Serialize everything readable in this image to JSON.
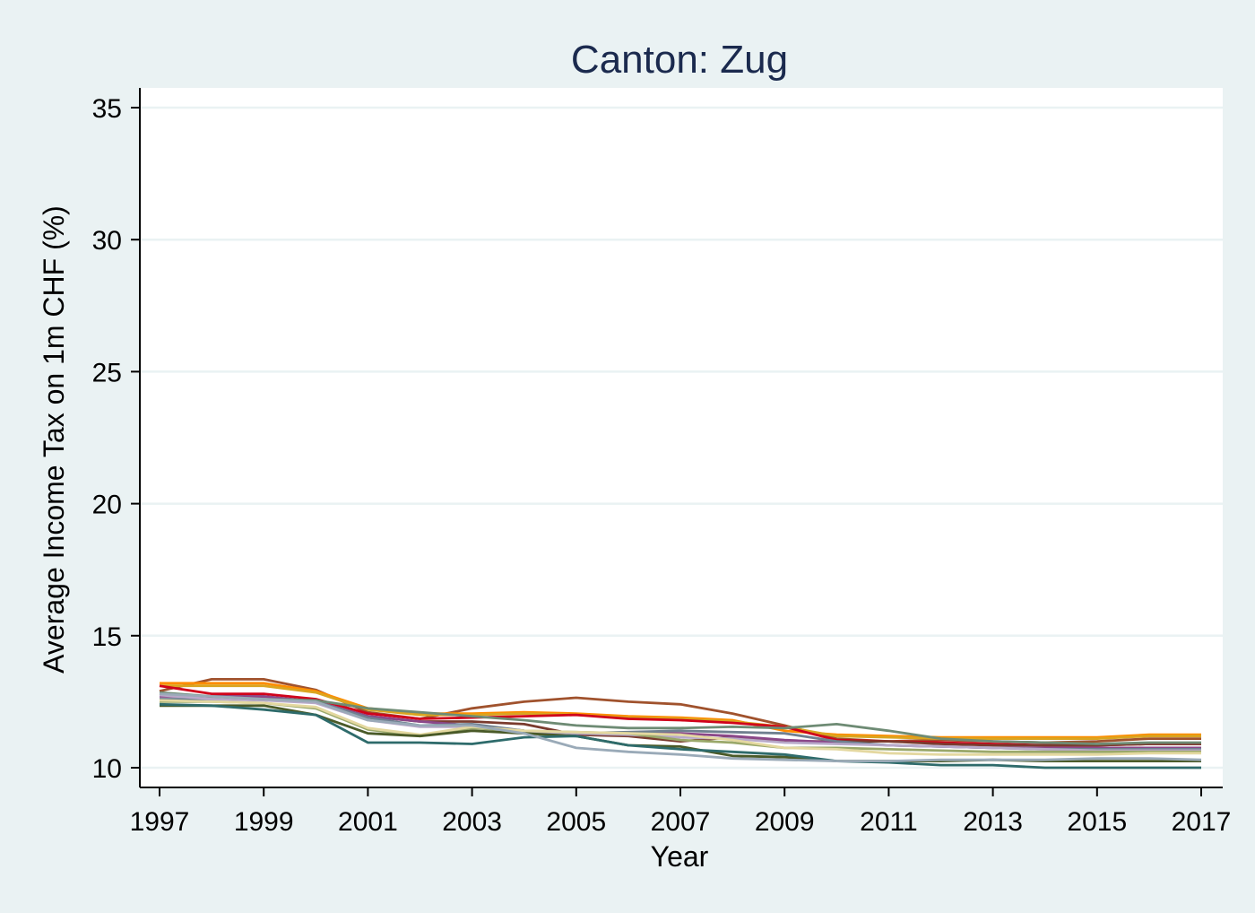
{
  "chart_data": {
    "type": "line",
    "title": "Canton: Zug",
    "xlabel": "Year",
    "ylabel": "Average Income Tax on 1m CHF (%)",
    "xlim": [
      1997,
      2017
    ],
    "ylim": [
      10,
      35
    ],
    "x_ticks": [
      1997,
      1999,
      2001,
      2003,
      2005,
      2007,
      2009,
      2011,
      2013,
      2015,
      2017
    ],
    "y_ticks": [
      10,
      15,
      20,
      25,
      30,
      35
    ],
    "grid": true,
    "legend": "none",
    "x": [
      1997,
      1998,
      1999,
      2000,
      2001,
      2002,
      2003,
      2004,
      2005,
      2006,
      2007,
      2008,
      2009,
      2010,
      2011,
      2012,
      2013,
      2014,
      2015,
      2016,
      2017
    ],
    "series": [
      {
        "color": "#a0522d",
        "values": [
          12.9,
          13.35,
          13.35,
          12.95,
          12.1,
          11.85,
          12.25,
          12.5,
          12.65,
          12.5,
          12.4,
          12.05,
          11.6,
          11.1,
          11.0,
          11.05,
          11.0,
          10.95,
          11.0,
          11.1,
          11.1
        ]
      },
      {
        "color": "#ff8c00",
        "values": [
          13.2,
          13.2,
          13.2,
          12.9,
          12.25,
          12.05,
          12.05,
          12.1,
          12.05,
          11.95,
          11.9,
          11.8,
          11.4,
          11.25,
          11.2,
          11.15,
          11.15,
          11.15,
          11.15,
          11.25,
          11.25
        ]
      },
      {
        "color": "#daa520",
        "values": [
          13.1,
          13.1,
          13.1,
          12.85,
          12.2,
          12.0,
          12.0,
          12.05,
          12.0,
          11.9,
          11.85,
          11.75,
          11.55,
          11.2,
          11.15,
          11.1,
          11.1,
          11.1,
          11.1,
          11.2,
          11.2
        ]
      },
      {
        "color": "#d0021b",
        "values": [
          13.1,
          12.8,
          12.8,
          12.6,
          12.05,
          11.85,
          11.9,
          11.95,
          12.0,
          11.85,
          11.8,
          11.7,
          11.55,
          11.05,
          11.0,
          10.95,
          10.9,
          10.85,
          10.85,
          10.9,
          10.9
        ]
      },
      {
        "color": "#7a3b2e",
        "values": [
          12.8,
          12.7,
          12.7,
          12.5,
          11.95,
          11.75,
          11.75,
          11.65,
          11.25,
          11.2,
          11.0,
          11.15,
          11.0,
          11.0,
          11.0,
          10.9,
          10.85,
          10.85,
          10.85,
          10.9,
          10.9
        ]
      },
      {
        "color": "#8b4789",
        "values": [
          12.7,
          12.7,
          12.7,
          12.5,
          11.95,
          11.75,
          11.6,
          11.4,
          11.3,
          11.3,
          11.3,
          11.2,
          11.05,
          10.95,
          10.85,
          10.8,
          10.75,
          10.75,
          10.75,
          10.75,
          10.75
        ]
      },
      {
        "color": "#708090",
        "values": [
          12.6,
          12.6,
          12.6,
          12.5,
          11.9,
          11.6,
          11.65,
          11.4,
          11.3,
          11.35,
          11.4,
          11.35,
          11.3,
          11.0,
          10.85,
          10.8,
          10.75,
          10.7,
          10.7,
          10.7,
          10.7
        ]
      },
      {
        "color": "#b8a9c9",
        "values": [
          12.75,
          12.6,
          12.55,
          12.45,
          11.8,
          11.55,
          11.55,
          11.35,
          11.3,
          11.25,
          11.15,
          11.1,
          10.95,
          10.9,
          10.85,
          10.8,
          10.75,
          10.7,
          10.65,
          10.65,
          10.65
        ]
      },
      {
        "color": "#6e8b74",
        "values": [
          12.85,
          12.7,
          12.6,
          12.55,
          12.25,
          12.1,
          11.95,
          11.8,
          11.6,
          11.5,
          11.5,
          11.55,
          11.5,
          11.65,
          11.4,
          11.1,
          11.0,
          10.95,
          10.9,
          10.95,
          10.95
        ]
      },
      {
        "color": "#9aa86a",
        "values": [
          12.5,
          12.5,
          12.45,
          12.25,
          11.45,
          11.2,
          11.5,
          11.4,
          11.35,
          11.3,
          11.05,
          10.95,
          10.75,
          10.75,
          10.7,
          10.65,
          10.6,
          10.6,
          10.6,
          10.6,
          10.6
        ]
      },
      {
        "color": "#e4d8a0",
        "values": [
          12.55,
          12.5,
          12.45,
          12.3,
          11.5,
          11.25,
          11.55,
          11.4,
          11.35,
          11.3,
          11.25,
          11.05,
          10.75,
          10.7,
          10.55,
          10.5,
          10.5,
          10.5,
          10.5,
          10.55,
          10.55
        ]
      },
      {
        "color": "#4a5a28",
        "values": [
          12.35,
          12.35,
          12.35,
          12.0,
          11.3,
          11.2,
          11.4,
          11.3,
          11.2,
          10.85,
          10.8,
          10.45,
          10.4,
          10.25,
          10.25,
          10.25,
          10.3,
          10.25,
          10.25,
          10.25,
          10.25
        ]
      },
      {
        "color": "#2e6b6b",
        "values": [
          12.4,
          12.35,
          12.2,
          12.0,
          10.95,
          10.95,
          10.9,
          11.15,
          11.2,
          10.85,
          10.7,
          10.6,
          10.5,
          10.25,
          10.2,
          10.1,
          10.1,
          10.0,
          10.0,
          10.0,
          10.0
        ]
      },
      {
        "color": "#9aaab8",
        "values": [
          12.8,
          12.7,
          12.6,
          12.5,
          11.8,
          11.6,
          11.6,
          11.3,
          10.75,
          10.6,
          10.5,
          10.35,
          10.3,
          10.25,
          10.25,
          10.3,
          10.3,
          10.3,
          10.35,
          10.35,
          10.3
        ]
      }
    ]
  }
}
